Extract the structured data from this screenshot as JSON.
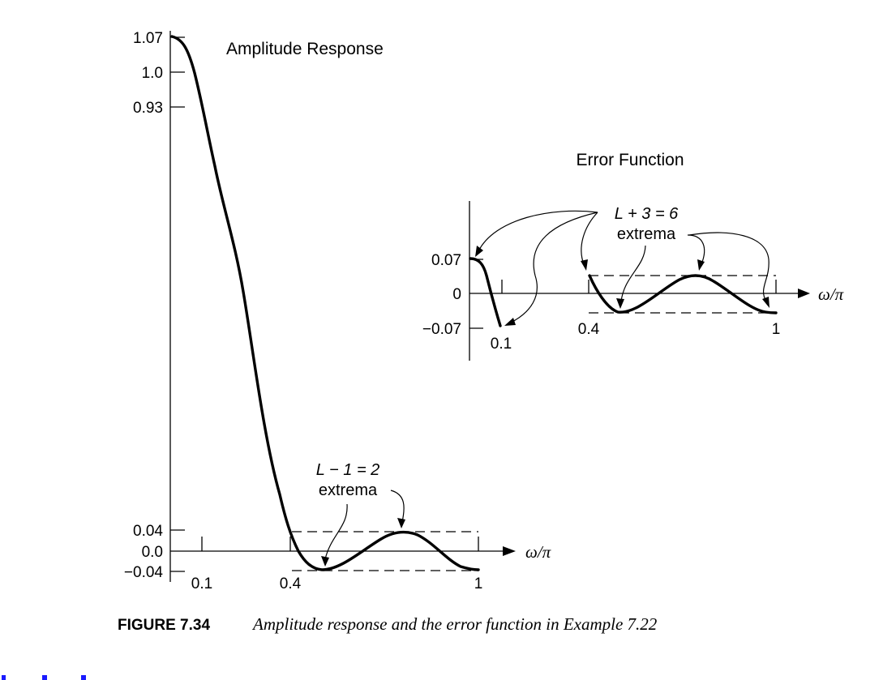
{
  "chart_data": [
    {
      "type": "line",
      "title": "Amplitude Response",
      "xlabel": "ω/π",
      "ylabel": "",
      "xlim": [
        0,
        1
      ],
      "ylim": [
        -0.04,
        1.07
      ],
      "x_tick_labels": [
        "0.1",
        "0.4",
        "1"
      ],
      "x_ticks": [
        0.1,
        0.4,
        1
      ],
      "y_tick_labels": [
        "1.07",
        "1.0",
        "0.93",
        "0.04",
        "0.0",
        "−0.04"
      ],
      "y_ticks": [
        1.07,
        1.0,
        0.93,
        0.04,
        0.0,
        -0.04
      ],
      "series": [
        {
          "x": [
            0,
            0.02,
            0.05,
            0.08,
            0.1,
            0.15,
            0.2,
            0.25,
            0.3,
            0.35,
            0.4,
            0.43,
            0.46,
            0.5,
            0.55,
            0.6,
            0.67,
            0.75,
            0.8,
            0.85,
            0.9,
            0.95,
            1.0
          ],
          "y": [
            1.07,
            1.05,
            0.98,
            0.86,
            0.77,
            0.62,
            0.46,
            0.3,
            0.18,
            0.08,
            0.035,
            -0.02,
            -0.04,
            -0.035,
            -0.015,
            0.01,
            0.035,
            0.04,
            0.03,
            0.005,
            -0.02,
            -0.035,
            -0.04
          ]
        }
      ],
      "dashed_levels": [
        0.04,
        -0.04
      ],
      "annotation": {
        "line1_math": "L − 1 = 2",
        "line2": "extrema"
      }
    },
    {
      "type": "line",
      "title": "Error Function",
      "xlabel": "ω/π",
      "ylabel": "",
      "x_tick_labels": [
        "0.1",
        "0.4",
        "1"
      ],
      "x_ticks": [
        0.1,
        0.4,
        1
      ],
      "y_tick_labels": [
        "0.07",
        "0",
        "−0.07"
      ],
      "y_ticks": [
        0.07,
        0,
        -0.07
      ],
      "series": [
        {
          "x": [
            0,
            0.02,
            0.04,
            0.06,
            0.08,
            0.1
          ],
          "y": [
            0.07,
            0.065,
            0.04,
            0.0,
            -0.04,
            -0.07
          ]
        },
        {
          "x": [
            0.4,
            0.43,
            0.46,
            0.5,
            0.55,
            0.6,
            0.67,
            0.75,
            0.8,
            0.85,
            0.9,
            0.95,
            1.0
          ],
          "y": [
            0.04,
            -0.02,
            -0.04,
            -0.035,
            -0.015,
            0.01,
            0.035,
            0.04,
            0.03,
            0.005,
            -0.02,
            -0.035,
            -0.04
          ]
        }
      ],
      "dashed_levels": [
        0.04,
        -0.04
      ],
      "annotation": {
        "line1_math": "L + 3 = 6",
        "line2": "extrema"
      }
    }
  ],
  "caption": {
    "number": "FIGURE 7.34",
    "text": "Amplitude response and the error function in Example 7.22"
  }
}
